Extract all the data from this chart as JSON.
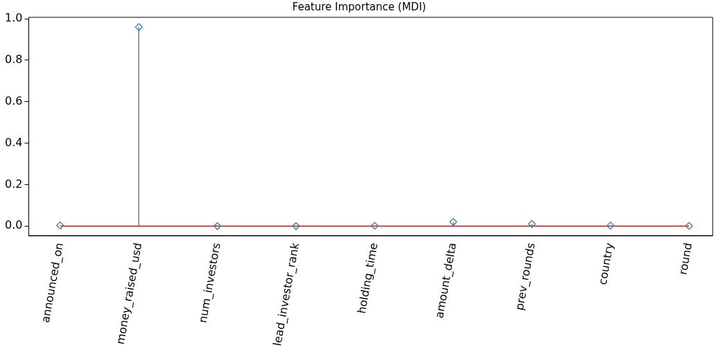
{
  "chart_data": {
    "type": "lollipop",
    "title": "Feature Importance (MDI)",
    "categories": [
      "announced_on",
      "money_raised_usd",
      "num_investors",
      "lead_investor_rank",
      "holding_time",
      "amount_delta",
      "prev_rounds",
      "country",
      "round"
    ],
    "series": [
      {
        "color": "#1f77b4",
        "values": [
          0.003,
          0.96,
          0,
          0,
          0.001,
          0.02,
          0.01,
          0.002,
          0.001
        ]
      }
    ],
    "marker": "diamond",
    "ylim": [
      -0.046,
      1.007
    ],
    "yticks": [
      {
        "value": 0,
        "label": "0.0"
      },
      {
        "value": 0.2,
        "label": "0.2"
      },
      {
        "value": 0.4,
        "label": "0.4"
      },
      {
        "value": 0.6,
        "label": "0.6"
      },
      {
        "value": 0.8,
        "label": "0.8"
      },
      {
        "value": 1,
        "label": "1.0"
      }
    ],
    "ref_lines": [
      {
        "axis": "y",
        "value": 0,
        "color": "#d62728"
      }
    ],
    "grid": false,
    "legend": false
  }
}
